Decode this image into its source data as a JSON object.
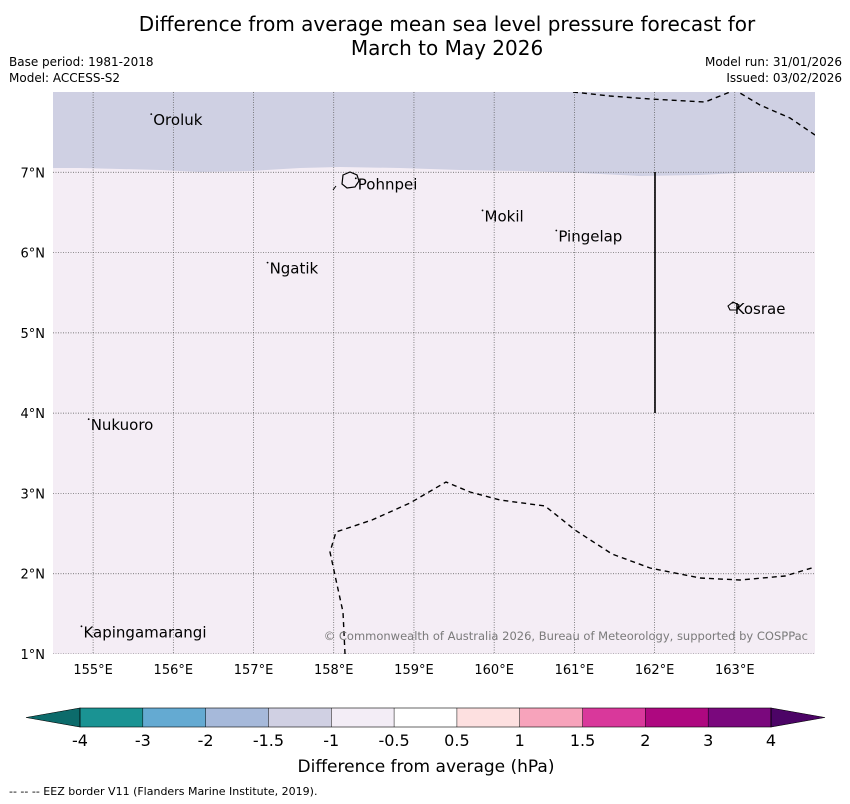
{
  "title_line1": "Difference from average mean sea level pressure forecast for",
  "title_line2": "March to May 2026",
  "base_period": "Base period: 1981-2018",
  "model": "Model: ACCESS-S2",
  "model_run": "Model run: 31/01/2026",
  "issued": "Issued: 03/02/2026",
  "copyright": "© Commonwealth of Australia 2026, Bureau of Meteorology, supported by COSPPac",
  "footer": "--  --  -- EEZ border V11 (Flanders Marine Institute, 2019).",
  "map": {
    "lon_range": [
      154.5,
      164.0
    ],
    "lat_range": [
      1.0,
      8.0
    ],
    "lon_ticks": [
      {
        "value": 155,
        "label": "155°E"
      },
      {
        "value": 156,
        "label": "156°E"
      },
      {
        "value": 157,
        "label": "157°E"
      },
      {
        "value": 158,
        "label": "158°E"
      },
      {
        "value": 159,
        "label": "159°E"
      },
      {
        "value": 160,
        "label": "160°E"
      },
      {
        "value": 161,
        "label": "161°E"
      },
      {
        "value": 162,
        "label": "162°E"
      },
      {
        "value": 163,
        "label": "163°E"
      }
    ],
    "lat_ticks": [
      {
        "value": 1,
        "label": "1°N"
      },
      {
        "value": 2,
        "label": "2°N"
      },
      {
        "value": 3,
        "label": "3°N"
      },
      {
        "value": 4,
        "label": "4°N"
      },
      {
        "value": 5,
        "label": "5°N"
      },
      {
        "value": 6,
        "label": "6°N"
      },
      {
        "value": 7,
        "label": "7°N"
      }
    ],
    "places": [
      {
        "name": "Oroluk",
        "lon": 155.75,
        "lat": 7.65
      },
      {
        "name": "Pohnpei",
        "lon": 158.3,
        "lat": 6.85
      },
      {
        "name": "Mokil",
        "lon": 159.88,
        "lat": 6.45
      },
      {
        "name": "Pingelap",
        "lon": 160.8,
        "lat": 6.2
      },
      {
        "name": "Ngatik",
        "lon": 157.2,
        "lat": 5.8
      },
      {
        "name": "Kosrae",
        "lon": 163.0,
        "lat": 5.3
      },
      {
        "name": "Nukuoro",
        "lon": 154.97,
        "lat": 3.85
      },
      {
        "name": "Kapingamarangi",
        "lon": 154.88,
        "lat": 1.27
      }
    ],
    "regions": [
      {
        "range": "-1.5 to -1",
        "color": "#cfd0e3"
      },
      {
        "range": "-1 to -0.5",
        "color": "#f4edf5"
      }
    ]
  },
  "colorbar": {
    "label": "Difference from average (hPa)",
    "colors": [
      "#1a9393",
      "#64aad2",
      "#a6b9da",
      "#d0d0e3",
      "#f3edf6",
      "#ffffff",
      "#fde0e0",
      "#f7a3bb",
      "#d9389b",
      "#ae0880",
      "#7a087d"
    ],
    "low_extend_color": "#0c6b6b",
    "high_extend_color": "#4c0466",
    "tick_labels": [
      "-4",
      "-3",
      "-2",
      "-1.5",
      "-1",
      "-0.5",
      "0.5",
      "1",
      "1.5",
      "2",
      "3",
      "4"
    ]
  }
}
